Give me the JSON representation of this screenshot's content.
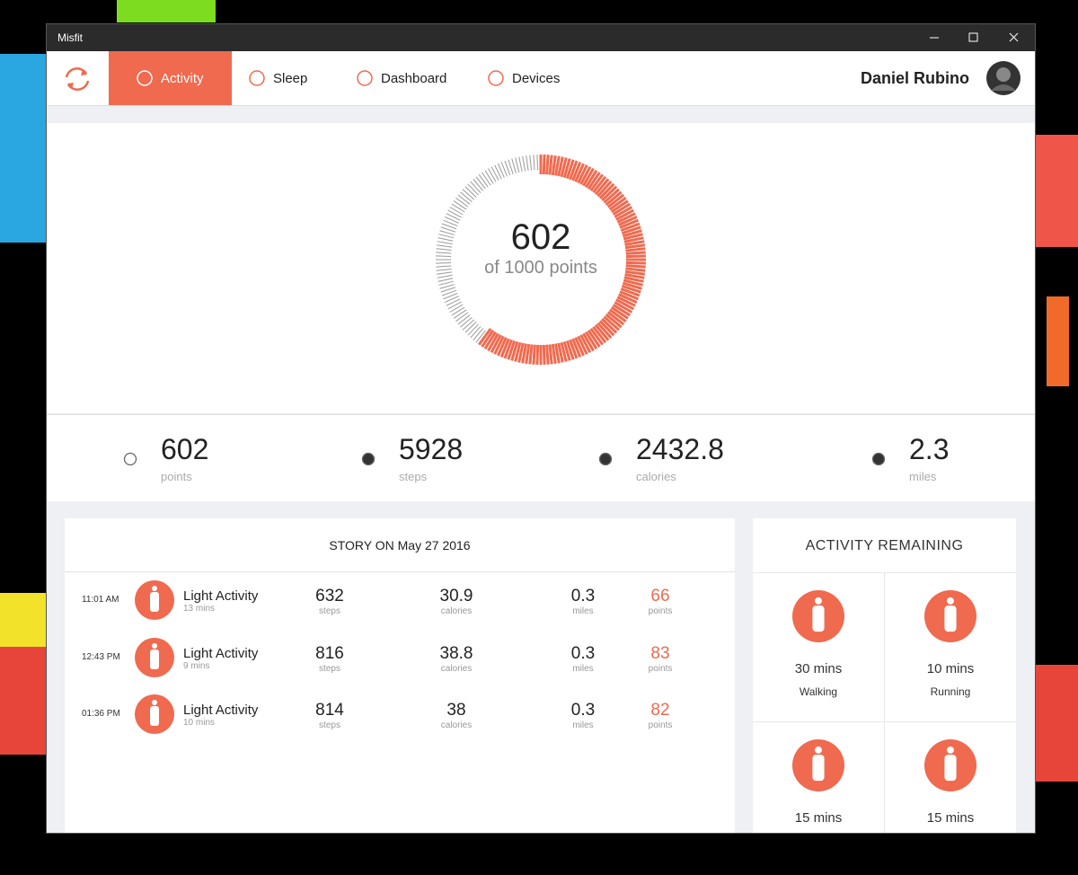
{
  "window": {
    "title": "Misfit"
  },
  "nav": {
    "tabs": [
      "Activity",
      "Sleep",
      "Dashboard",
      "Devices"
    ],
    "active": 0,
    "user": "Daniel Rubino"
  },
  "ring": {
    "value": 602,
    "of": "of",
    "total": 1000,
    "unit": "points"
  },
  "stats": [
    {
      "value": 602,
      "label": "points"
    },
    {
      "value": 5928,
      "label": "steps"
    },
    {
      "value": 2432.8,
      "label": "calories"
    },
    {
      "value": 2.3,
      "label": "miles"
    }
  ],
  "story": {
    "title": "STORY ON",
    "date": "May 27 2016",
    "column_labels": [
      "steps",
      "calories",
      "miles",
      "points"
    ],
    "rows": [
      {
        "time": "11:01 AM",
        "activity": "Light Activity",
        "duration": "13 mins",
        "steps": 632,
        "calories": 30.9,
        "miles": 0.3,
        "points": 66
      },
      {
        "time": "12:43 PM",
        "activity": "Light Activity",
        "duration": "9 mins",
        "steps": 816,
        "calories": 38.8,
        "miles": 0.3,
        "points": 83
      },
      {
        "time": "01:36 PM",
        "activity": "Light Activity",
        "duration": "10 mins",
        "steps": 814,
        "calories": 38,
        "miles": 0.3,
        "points": 82
      }
    ]
  },
  "remaining": {
    "title": "ACTIVITY REMAINING",
    "items": [
      {
        "duration": "30 mins",
        "activity": "Walking"
      },
      {
        "duration": "10 mins",
        "activity": "Running"
      },
      {
        "duration": "15 mins"
      },
      {
        "duration": "15 mins"
      }
    ]
  }
}
